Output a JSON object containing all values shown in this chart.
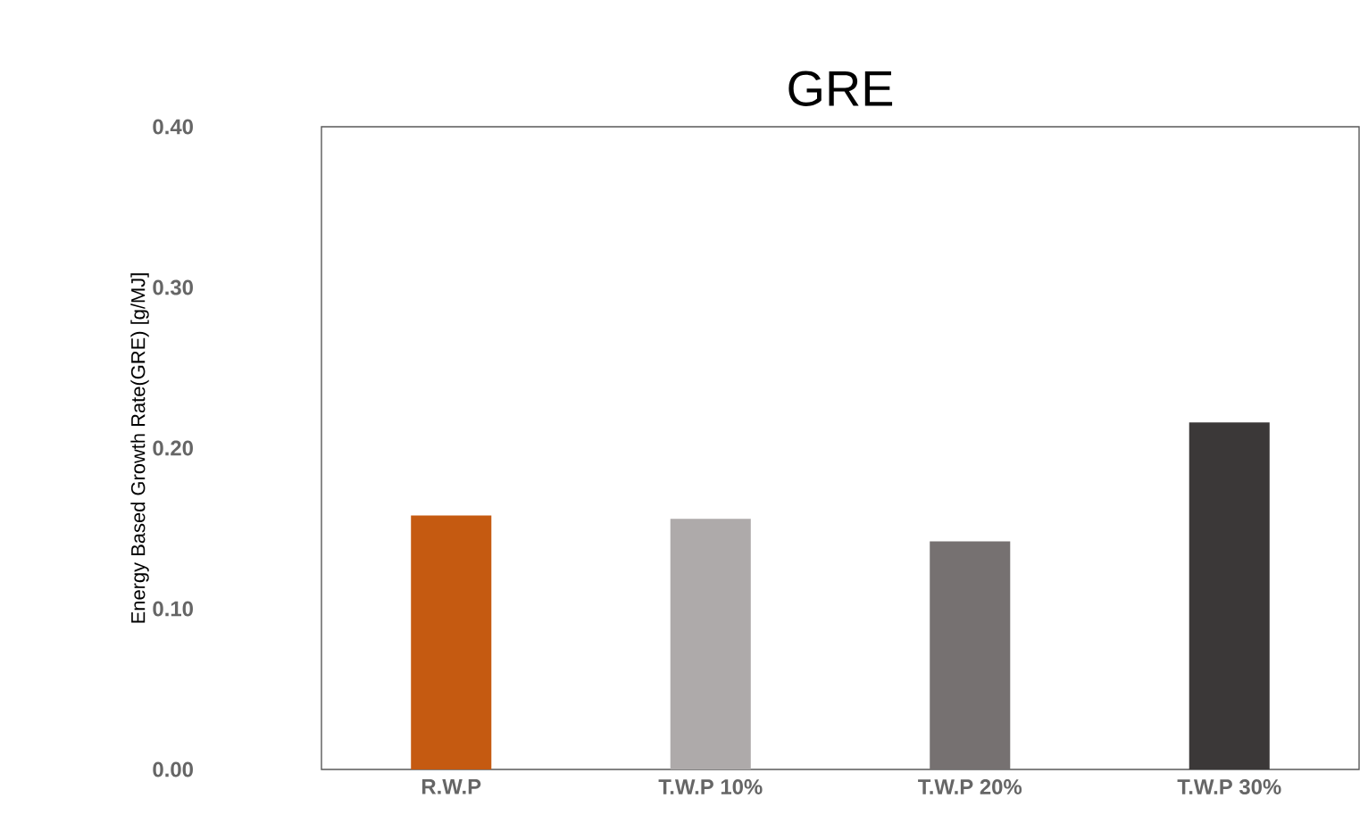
{
  "chart_data": {
    "type": "bar",
    "title": "GRE",
    "ylabel": "Energy Based Growth Rate(GRE) [g/MJ]",
    "categories": [
      "R.W.P",
      "T.W.P 10%",
      "T.W.P 20%",
      "T.W.P 30%"
    ],
    "values": [
      0.158,
      0.156,
      0.142,
      0.216
    ],
    "colors": [
      "#c55a11",
      "#aeaaaa",
      "#767171",
      "#3b3838"
    ],
    "ylim": [
      0,
      0.4
    ],
    "yticks": [
      {
        "value": 0,
        "label": "0.00"
      },
      {
        "value": 0.1,
        "label": "0.10"
      },
      {
        "value": 0.2,
        "label": "0.20"
      },
      {
        "value": 0.3,
        "label": "0.30"
      },
      {
        "value": 0.4,
        "label": "0.40"
      }
    ]
  }
}
